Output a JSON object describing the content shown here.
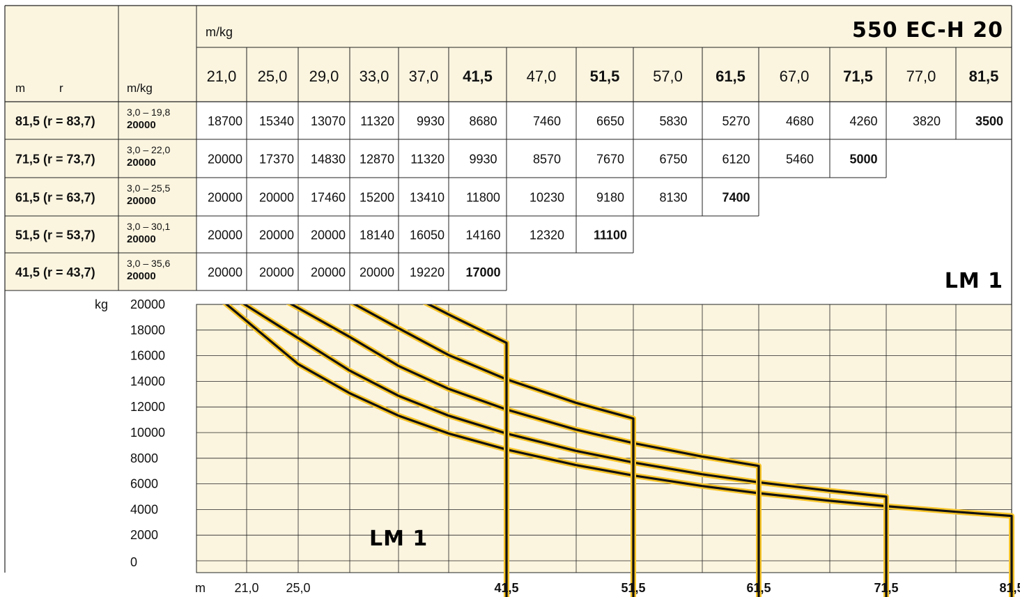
{
  "header": {
    "model": "550 EC-H 20",
    "unit_label": "m/kg",
    "col_m": "m",
    "col_r": "r",
    "col_mkg": "m/kg"
  },
  "table": {
    "radii": [
      "21,0",
      "25,0",
      "29,0",
      "33,0",
      "37,0",
      "41,5",
      "47,0",
      "51,5",
      "57,0",
      "61,5",
      "67,0",
      "71,5",
      "77,0",
      "81,5"
    ],
    "bold_radii": [
      "41,5",
      "51,5",
      "61,5",
      "71,5",
      "81,5"
    ],
    "rows": [
      {
        "jib": "81,5 (r = 83,7)",
        "range": "3,0 – 19,8",
        "max": "20000",
        "loads": [
          "18700",
          "15340",
          "13070",
          "11320",
          "9930",
          "8680",
          "7460",
          "6650",
          "5830",
          "5270",
          "4680",
          "4260",
          "3820",
          "3500"
        ]
      },
      {
        "jib": "71,5 (r = 73,7)",
        "range": "3,0 – 22,0",
        "max": "20000",
        "loads": [
          "20000",
          "17370",
          "14830",
          "12870",
          "11320",
          "9930",
          "8570",
          "7670",
          "6750",
          "6120",
          "5460",
          "5000"
        ]
      },
      {
        "jib": "61,5 (r = 63,7)",
        "range": "3,0 – 25,5",
        "max": "20000",
        "loads": [
          "20000",
          "20000",
          "17460",
          "15200",
          "13410",
          "11800",
          "10230",
          "9180",
          "8130",
          "7400"
        ]
      },
      {
        "jib": "51,5 (r = 53,7)",
        "range": "3,0 – 30,1",
        "max": "20000",
        "loads": [
          "20000",
          "20000",
          "20000",
          "18140",
          "16050",
          "14160",
          "12320",
          "11100"
        ]
      },
      {
        "jib": "41,5 (r = 43,7)",
        "range": "3,0 – 35,6",
        "max": "20000",
        "loads": [
          "20000",
          "20000",
          "20000",
          "20000",
          "19220",
          "17000"
        ]
      }
    ],
    "badge": "LM 1"
  },
  "chart_data": {
    "type": "line",
    "ylabel": "kg",
    "xlabel": "m",
    "ylim": [
      0,
      20000
    ],
    "y_ticks": [
      "20000",
      "18000",
      "16000",
      "14000",
      "12000",
      "10000",
      "8000",
      "6000",
      "4000",
      "2000",
      "0"
    ],
    "x_tick_labels": [
      "21,0",
      "25,0",
      "41,5",
      "51,5",
      "61,5",
      "71,5",
      "81,5"
    ],
    "x_tick_bold": [
      "41,5",
      "51,5",
      "61,5",
      "71,5",
      "81,5"
    ],
    "grid": true,
    "badge": "LM 1",
    "colors": {
      "fill": "#fbf5e0",
      "curve_outline": "#f7c52a",
      "curve": "#111111"
    },
    "series": [
      {
        "x": [
          21.0,
          25.0,
          29.0,
          33.0,
          37.0,
          41.5,
          47.0,
          51.5,
          57.0,
          61.5,
          67.0,
          71.5,
          77.0,
          81.5
        ],
        "y": [
          18700,
          15340,
          13070,
          11320,
          9930,
          8680,
          7460,
          6650,
          5830,
          5270,
          4680,
          4260,
          3820,
          3500
        ]
      },
      {
        "x": [
          25.0,
          29.0,
          33.0,
          37.0,
          41.5,
          47.0,
          51.5,
          57.0,
          61.5,
          67.0,
          71.5
        ],
        "y": [
          17370,
          14830,
          12870,
          11320,
          9930,
          8570,
          7670,
          6750,
          6120,
          5460,
          5000
        ]
      },
      {
        "x": [
          29.0,
          33.0,
          37.0,
          41.5,
          47.0,
          51.5,
          57.0,
          61.5
        ],
        "y": [
          17460,
          15200,
          13410,
          11800,
          10230,
          9180,
          8130,
          7400
        ]
      },
      {
        "x": [
          33.0,
          37.0,
          41.5,
          47.0,
          51.5
        ],
        "y": [
          18140,
          16050,
          14160,
          12320,
          11100
        ]
      },
      {
        "x": [
          37.0,
          41.5
        ],
        "y": [
          19220,
          17000
        ]
      }
    ]
  }
}
